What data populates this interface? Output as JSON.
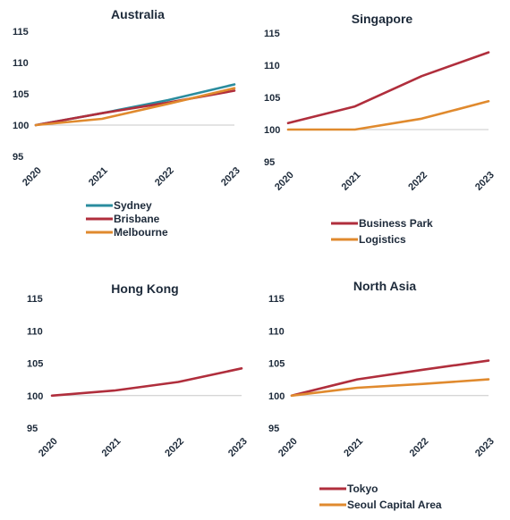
{
  "chart_data": [
    {
      "type": "line",
      "title": "Australia",
      "x": [
        "2020",
        "2021",
        "2022",
        "2023"
      ],
      "yticks": [
        "95",
        "100",
        "105",
        "110",
        "115"
      ],
      "ylim": [
        95,
        115
      ],
      "baseline": 100,
      "legend_position": "bottom-left",
      "series": [
        {
          "name": "Sydney",
          "color": "#2a8c9e",
          "values": [
            100,
            101.9,
            104.0,
            106.5
          ]
        },
        {
          "name": "Brisbane",
          "color": "#b02e3c",
          "values": [
            100,
            101.9,
            103.6,
            105.5
          ]
        },
        {
          "name": "Melbourne",
          "color": "#e08a2e",
          "values": [
            100,
            101.0,
            103.4,
            105.9
          ]
        }
      ]
    },
    {
      "type": "line",
      "title": "Singapore",
      "x": [
        "2020",
        "2021",
        "2022",
        "2023"
      ],
      "yticks": [
        "95",
        "100",
        "105",
        "110",
        "115"
      ],
      "ylim": [
        95,
        115
      ],
      "baseline": 100,
      "legend_position": "bottom-center",
      "series": [
        {
          "name": "Business Park",
          "color": "#b02e3c",
          "values": [
            101.0,
            103.6,
            108.3,
            112.0
          ]
        },
        {
          "name": "Logistics",
          "color": "#e08a2e",
          "values": [
            100,
            100,
            101.7,
            104.4
          ]
        }
      ]
    },
    {
      "type": "line",
      "title": "Hong Kong",
      "x": [
        "2020",
        "2021",
        "2022",
        "2023"
      ],
      "yticks": [
        "95",
        "100",
        "105",
        "110",
        "115"
      ],
      "ylim": [
        95,
        115
      ],
      "baseline": 100,
      "legend_position": "none",
      "series": [
        {
          "name": "",
          "color": "#b02e3c",
          "values": [
            100,
            100.8,
            102.1,
            104.2
          ]
        }
      ]
    },
    {
      "type": "line",
      "title": "North Asia",
      "x": [
        "2020",
        "2021",
        "2022",
        "2023"
      ],
      "yticks": [
        "95",
        "100",
        "105",
        "110",
        "115"
      ],
      "ylim": [
        95,
        115
      ],
      "baseline": 100,
      "legend_position": "bottom-left",
      "series": [
        {
          "name": "Tokyo",
          "color": "#b02e3c",
          "values": [
            100,
            102.5,
            104.0,
            105.4
          ]
        },
        {
          "name": "Seoul Capital Area",
          "color": "#e08a2e",
          "values": [
            100,
            101.2,
            101.8,
            102.5
          ]
        }
      ]
    }
  ]
}
